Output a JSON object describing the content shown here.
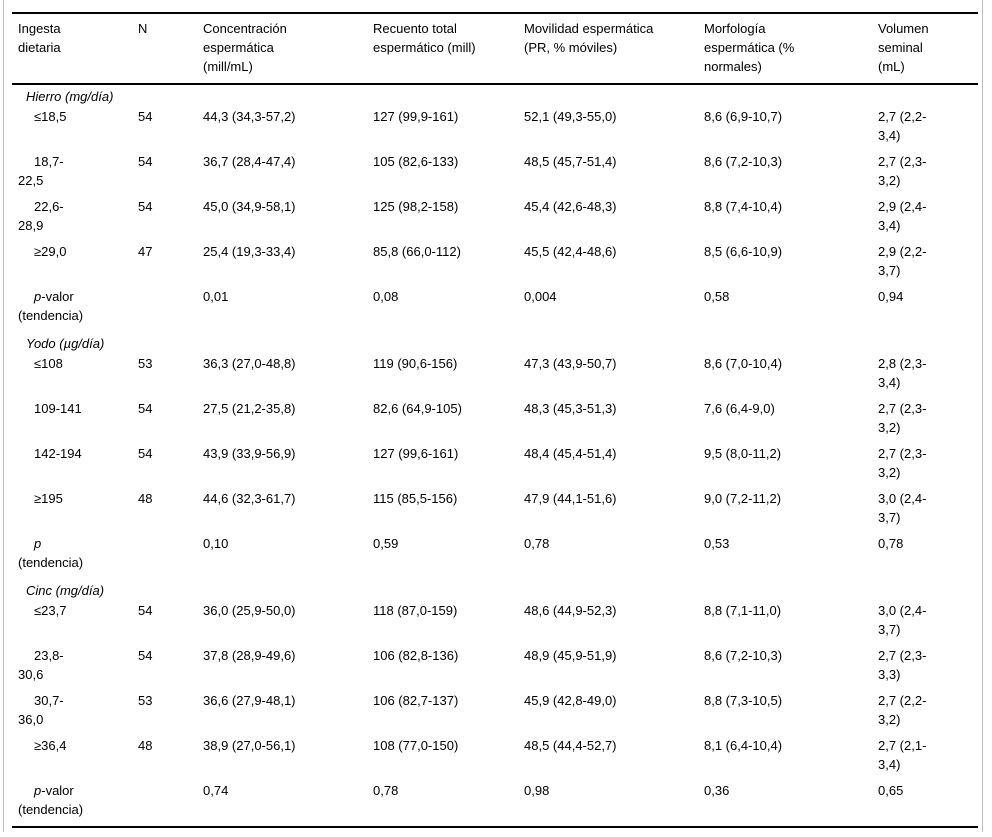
{
  "colors": {
    "text": "#000000",
    "background": "#ffffff",
    "rule": "#000000",
    "outer_border": "#bdbdbd"
  },
  "table": {
    "header": {
      "col1": "Ingesta\ndietaria",
      "col2": "N",
      "col3": "Concentración\nespermática\n(mill/mL)",
      "col4": "Recuento total\nespermático (mill)",
      "col5": "Movilidad espermática\n(PR, % móviles)",
      "col6": "Morfología\nespermática (%\nnormales)",
      "col7": "Volumen\nseminal\n(mL)"
    },
    "sections": [
      {
        "title": "Hierro (mg/día)",
        "rows": [
          {
            "label": "≤18,5",
            "n": "54",
            "concentration": "44,3 (34,3-57,2)",
            "total_count": "127 (99,9-161)",
            "motility": "52,1 (49,3-55,0)",
            "morphology": "8,6 (6,9-10,7)",
            "volume": "2,7 (2,2-\n3,4)"
          },
          {
            "label": "18,7-\n22,5",
            "n": "54",
            "concentration": "36,7 (28,4-47,4)",
            "total_count": "105 (82,6-133)",
            "motility": "48,5 (45,7-51,4)",
            "morphology": "8,6 (7,2-10,3)",
            "volume": "2,7 (2,3-\n3,2)"
          },
          {
            "label": "22,6-\n28,9",
            "n": "54",
            "concentration": "45,0 (34,9-58,1)",
            "total_count": "125 (98,2-158)",
            "motility": "45,4 (42,6-48,3)",
            "morphology": "8,8 (7,4-10,4)",
            "volume": "2,9 (2,4-\n3,4)"
          },
          {
            "label": "≥29,0",
            "n": "47",
            "concentration": "25,4 (19,3-33,4)",
            "total_count": "85,8 (66,0-112)",
            "motility": "45,5 (42,4-48,6)",
            "morphology": "8,5 (6,6-10,9)",
            "volume": "2,9 (2,2-\n3,7)"
          }
        ],
        "p_row": {
          "p": "p",
          "rest": "-valor\n(tendencia)",
          "concentration": "0,01",
          "total_count": "0,08",
          "motility": "0,004",
          "morphology": "0,58",
          "volume": "0,94"
        }
      },
      {
        "title": "Yodo (µg/día)",
        "rows": [
          {
            "label": "≤108",
            "n": "53",
            "concentration": "36,3 (27,0-48,8)",
            "total_count": "119 (90,6-156)",
            "motility": "47,3 (43,9-50,7)",
            "morphology": "8,6 (7,0-10,4)",
            "volume": "2,8 (2,3-\n3,4)"
          },
          {
            "label": "109-141",
            "n": "54",
            "concentration": "27,5 (21,2-35,8)",
            "total_count": "82,6 (64,9-105)",
            "motility": "48,3 (45,3-51,3)",
            "morphology": "7,6 (6,4-9,0)",
            "volume": "2,7 (2,3-\n3,2)"
          },
          {
            "label": "142-194",
            "n": "54",
            "concentration": "43,9 (33,9-56,9)",
            "total_count": "127 (99,6-161)",
            "motility": "48,4 (45,4-51,4)",
            "morphology": "9,5 (8,0-11,2)",
            "volume": "2,7 (2,3-\n3,2)"
          },
          {
            "label": "≥195",
            "n": "48",
            "concentration": "44,6 (32,3-61,7)",
            "total_count": "115 (85,5-156)",
            "motility": "47,9 (44,1-51,6)",
            "morphology": "9,0 (7,2-11,2)",
            "volume": "3,0 (2,4-\n3,7)"
          }
        ],
        "p_row": {
          "p": "p",
          "rest": "\n(tendencia)",
          "concentration": "0,10",
          "total_count": "0,59",
          "motility": "0,78",
          "morphology": "0,53",
          "volume": "0,78"
        }
      },
      {
        "title": "Cinc (mg/día)",
        "rows": [
          {
            "label": "≤23,7",
            "n": "54",
            "concentration": "36,0 (25,9-50,0)",
            "total_count": "118 (87,0-159)",
            "motility": "48,6 (44,9-52,3)",
            "morphology": "8,8 (7,1-11,0)",
            "volume": "3,0 (2,4-\n3,7)"
          },
          {
            "label": "23,8-\n30,6",
            "n": "54",
            "concentration": "37,8 (28,9-49,6)",
            "total_count": "106 (82,8-136)",
            "motility": "48,9 (45,9-51,9)",
            "morphology": "8,6 (7,2-10,3)",
            "volume": "2,7 (2,3-\n3,3)"
          },
          {
            "label": "30,7-\n36,0",
            "n": "53",
            "concentration": "36,6 (27,9-48,1)",
            "total_count": "106 (82,7-137)",
            "motility": "45,9 (42,8-49,0)",
            "morphology": "8,8 (7,3-10,5)",
            "volume": "2,7 (2,2-\n3,2)"
          },
          {
            "label": "≥36,4",
            "n": "48",
            "concentration": "38,9 (27,0-56,1)",
            "total_count": "108 (77,0-150)",
            "motility": "48,5 (44,4-52,7)",
            "morphology": "8,1 (6,4-10,4)",
            "volume": "2,7 (2,1-\n3,4)"
          }
        ],
        "p_row": {
          "p": "p",
          "rest": "-valor\n(tendencia)",
          "concentration": "0,74",
          "total_count": "0,78",
          "motility": "0,98",
          "morphology": "0,36",
          "volume": "0,65"
        }
      }
    ]
  }
}
